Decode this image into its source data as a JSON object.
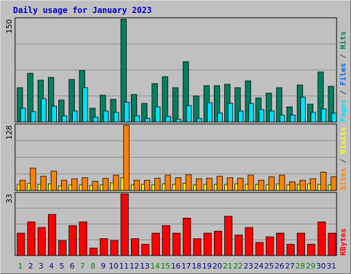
{
  "title": "Daily usage for January 2023",
  "chart_data": {
    "type": "bar",
    "categories": [
      "1",
      "2",
      "3",
      "4",
      "5",
      "6",
      "7",
      "8",
      "9",
      "10",
      "11",
      "12",
      "13",
      "14",
      "15",
      "16",
      "17",
      "18",
      "19",
      "20",
      "21",
      "22",
      "23",
      "24",
      "25",
      "26",
      "27",
      "28",
      "29",
      "30",
      "31"
    ],
    "weekend_days": [
      1,
      7,
      8,
      14,
      15,
      21,
      22,
      28,
      29
    ],
    "colors": {
      "pages": "#00e0ff",
      "files": "#0064ff",
      "hits": "#008060",
      "sites": "#ff8000",
      "visits": "#ffff00",
      "kbytes": "#ff0000",
      "weekday_label": "#000080",
      "weekend_label": "#008000"
    },
    "panels": [
      {
        "ymax_label": "150",
        "ylim": [
          0,
          150
        ],
        "legend_labels": [
          "Pages",
          " / ",
          "Files",
          " / ",
          "Hits"
        ],
        "series": [
          {
            "name": "Hits",
            "values": [
              50,
              71,
              61,
              65,
              32,
              62,
              75,
              20,
              39,
              33,
              150,
              40,
              27,
              56,
              66,
              50,
              88,
              38,
              53,
              53,
              55,
              50,
              60,
              35,
              42,
              50,
              22,
              54,
              26,
              73,
              52
            ]
          },
          {
            "name": "Files",
            "values": [
              20,
              15,
              34,
              23,
              9,
              16,
              50,
              7,
              16,
              14,
              29,
              9,
              5,
              22,
              8,
              4,
              24,
              5,
              28,
              13,
              27,
              16,
              27,
              18,
              16,
              10,
              10,
              36,
              14,
              19,
              13
            ]
          },
          {
            "name": "Pages",
            "values": [
              20,
              15,
              34,
              23,
              9,
              16,
              50,
              7,
              16,
              14,
              29,
              9,
              5,
              22,
              8,
              4,
              24,
              5,
              28,
              13,
              27,
              16,
              27,
              18,
              16,
              10,
              10,
              36,
              14,
              19,
              13
            ]
          }
        ]
      },
      {
        "ymax_label": "128",
        "ylim": [
          0,
          128
        ],
        "legend_labels": [
          "Sites",
          " / ",
          "Visits"
        ],
        "series": [
          {
            "name": "Visits",
            "values": [
              12,
              14,
              12,
              13,
              9,
              11,
              11,
              10,
              11,
              15,
              25,
              11,
              12,
              11,
              13,
              12,
              14,
              11,
              12,
              12,
              12,
              13,
              12,
              12,
              11,
              13,
              11,
              12,
              13,
              12,
              11
            ]
          },
          {
            "name": "Sites",
            "values": [
              20,
              44,
              28,
              38,
              20,
              23,
              25,
              18,
              24,
              30,
              128,
              20,
              20,
              24,
              30,
              25,
              31,
              23,
              24,
              28,
              25,
              24,
              30,
              20,
              27,
              30,
              17,
              20,
              23,
              36,
              27
            ]
          }
        ]
      },
      {
        "ymax_label": "33",
        "ylim": [
          0,
          33
        ],
        "legend_labels": [
          "KBytes"
        ],
        "series": [
          {
            "name": "KBytes",
            "values": [
              12,
              18,
              15,
              22,
              8,
              16,
              18,
              4,
              9,
              8,
              33,
              9,
              6,
              12,
              16,
              12,
              20,
              9,
              12,
              13,
              21,
              11,
              15,
              7,
              10,
              12,
              6,
              12,
              6,
              18,
              12
            ]
          }
        ]
      }
    ]
  }
}
